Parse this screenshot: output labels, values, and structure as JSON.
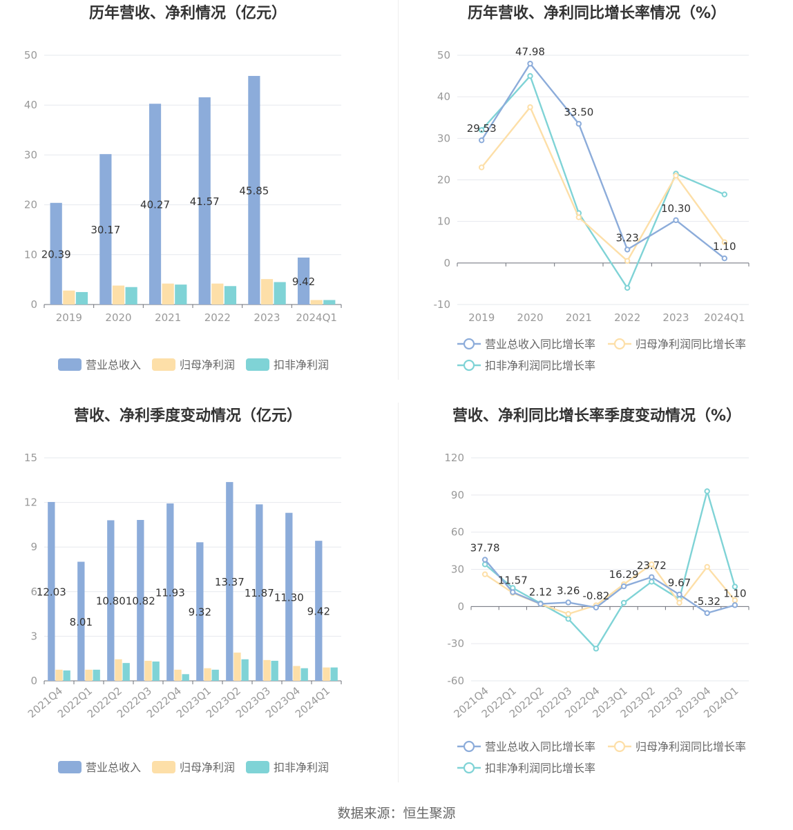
{
  "colors": {
    "revenue": "#8CACDA",
    "net_profit": "#FDDFA8",
    "deducted_profit": "#7FD3D6",
    "grid": "#E6E8EE",
    "axis": "#6E7079"
  },
  "source": "数据来源：恒生聚源",
  "chart_data": [
    {
      "id": "annual-bar",
      "type": "bar",
      "title": "历年营收、净利情况（亿元）",
      "categories": [
        "2019",
        "2020",
        "2021",
        "2022",
        "2023",
        "2024Q1"
      ],
      "ylim": [
        0,
        50
      ],
      "yticks": [
        0,
        10,
        20,
        30,
        40,
        50
      ],
      "legend_position": "bottom",
      "grid": true,
      "series": [
        {
          "name": "营业总收入",
          "values": [
            20.39,
            30.17,
            40.27,
            41.57,
            45.85,
            9.42
          ],
          "labels": [
            "20.39",
            "30.17",
            "40.27",
            "41.57",
            "45.85",
            "9.42"
          ]
        },
        {
          "name": "归母净利润",
          "values": [
            2.8,
            3.8,
            4.2,
            4.2,
            5.1,
            0.9
          ]
        },
        {
          "name": "扣非净利润",
          "values": [
            2.5,
            3.5,
            4.0,
            3.7,
            4.5,
            0.9
          ]
        }
      ]
    },
    {
      "id": "annual-line",
      "type": "line",
      "title": "历年营收、净利同比增长率情况（%）",
      "categories": [
        "2019",
        "2020",
        "2021",
        "2022",
        "2023",
        "2024Q1"
      ],
      "ylim": [
        -10,
        50
      ],
      "yticks": [
        -10,
        0,
        10,
        20,
        30,
        40,
        50
      ],
      "legend_position": "bottom",
      "grid": true,
      "series": [
        {
          "name": "营业总收入同比增长率",
          "values": [
            29.53,
            47.98,
            33.5,
            3.23,
            10.3,
            1.1
          ],
          "labels": [
            "29.53",
            "47.98",
            "33.50",
            "3.23",
            "10.30",
            "1.10"
          ]
        },
        {
          "name": "归母净利润同比增长率",
          "values": [
            23.0,
            37.5,
            11.0,
            0.5,
            21.0,
            5.0
          ]
        },
        {
          "name": "扣非净利润同比增长率",
          "values": [
            32.0,
            45.0,
            12.0,
            -6.0,
            21.5,
            16.5
          ]
        }
      ]
    },
    {
      "id": "quarterly-bar",
      "type": "bar",
      "title": "营收、净利季度变动情况（亿元）",
      "categories": [
        "2021Q4",
        "2022Q1",
        "2022Q2",
        "2022Q3",
        "2022Q4",
        "2023Q1",
        "2023Q2",
        "2023Q3",
        "2023Q4",
        "2024Q1"
      ],
      "ylim": [
        0,
        15
      ],
      "yticks": [
        0,
        3,
        6,
        9,
        12,
        15
      ],
      "legend_position": "bottom",
      "grid": true,
      "series": [
        {
          "name": "营业总收入",
          "values": [
            12.03,
            8.01,
            10.8,
            10.82,
            11.93,
            9.32,
            13.37,
            11.87,
            11.3,
            9.42
          ],
          "labels": [
            "12.03",
            "8.01",
            "10.80",
            "10.82",
            "11.93",
            "9.32",
            "13.37",
            "11.87",
            "11.30",
            "9.42"
          ]
        },
        {
          "name": "归母净利润",
          "values": [
            0.75,
            0.75,
            1.45,
            1.35,
            0.75,
            0.85,
            1.9,
            1.4,
            1.0,
            0.9
          ]
        },
        {
          "name": "扣非净利润",
          "values": [
            0.7,
            0.75,
            1.2,
            1.3,
            0.45,
            0.75,
            1.45,
            1.35,
            0.85,
            0.9
          ]
        }
      ]
    },
    {
      "id": "quarterly-line",
      "type": "line",
      "title": "营收、净利同比增长率季度变动情况（%）",
      "categories": [
        "2021Q4",
        "2022Q1",
        "2022Q2",
        "2022Q3",
        "2022Q4",
        "2023Q1",
        "2023Q2",
        "2023Q3",
        "2023Q4",
        "2024Q1"
      ],
      "ylim": [
        -60,
        120
      ],
      "yticks": [
        -60,
        -30,
        0,
        30,
        60,
        90,
        120
      ],
      "legend_position": "bottom",
      "grid": true,
      "series": [
        {
          "name": "营业总收入同比增长率",
          "values": [
            37.78,
            11.57,
            2.12,
            3.26,
            -0.82,
            16.29,
            23.72,
            9.67,
            -5.32,
            1.1
          ],
          "labels": [
            "37.78",
            "11.57",
            "2.12",
            "3.26",
            "-0.82",
            "16.29",
            "23.72",
            "9.67",
            "-5.32",
            "1.10"
          ]
        },
        {
          "name": "归母净利润同比增长率",
          "values": [
            26.0,
            11.0,
            2.0,
            -6.0,
            1.0,
            18.0,
            34.0,
            3.0,
            32.0,
            5.0
          ]
        },
        {
          "name": "扣非净利润同比增长率",
          "values": [
            34.0,
            15.0,
            2.5,
            -10.0,
            -34.0,
            3.0,
            20.0,
            6.0,
            93.0,
            16.0
          ]
        }
      ]
    }
  ]
}
